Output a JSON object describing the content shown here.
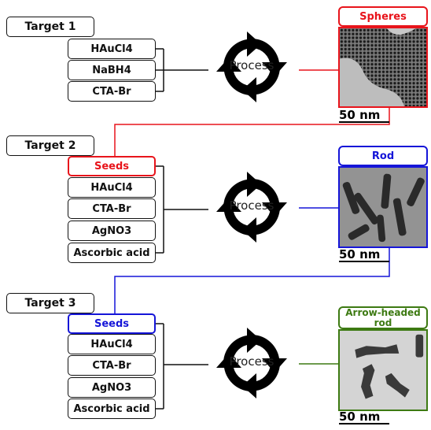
{
  "targets": [
    {
      "title": "Target 1",
      "ingredients": [
        "HAuCl4",
        "NaBH4",
        "CTA-Br"
      ],
      "process_label": "Process",
      "product_label": "Spheres",
      "scale_bar": "50 nm",
      "color": "#e8141b"
    },
    {
      "title": "Target 2",
      "seeds_label": "Seeds",
      "ingredients": [
        "HAuCl4",
        "CTA-Br",
        "AgNO3",
        "Ascorbic acid"
      ],
      "process_label": "Process",
      "product_label": "Rod",
      "scale_bar": "50 nm",
      "color": "#1515d8"
    },
    {
      "title": "Target 3",
      "seeds_label": "Seeds",
      "ingredients": [
        "HAuCl4",
        "CTA-Br",
        "AgNO3",
        "Ascorbic acid"
      ],
      "process_label": "Process",
      "product_label": "Arrow-headed rod",
      "scale_bar": "50 nm",
      "color": "#3d7a12"
    }
  ],
  "icons": {
    "process": "circular-arrows-icon"
  }
}
